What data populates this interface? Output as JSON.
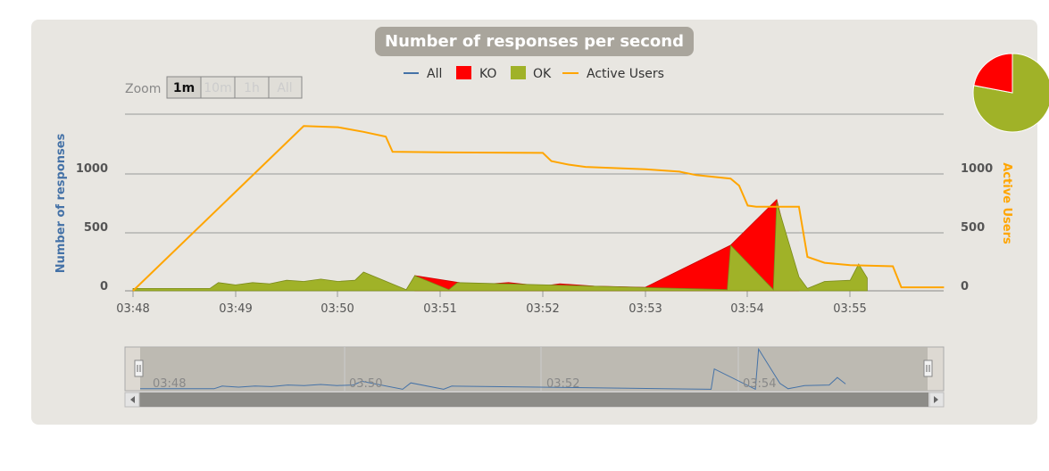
{
  "chart_data": {
    "type": "area",
    "title": "Number of responses per second",
    "legend": [
      "All",
      "KO",
      "OK",
      "Active Users"
    ],
    "legend_position": "top-center",
    "ylabel_left": "Number of responses",
    "ylabel_right": "Active Users",
    "yticks_left": [
      "0",
      "500",
      "1000"
    ],
    "yticks_right": [
      "0",
      "500",
      "1000"
    ],
    "xticks": [
      "03:48",
      "03:49",
      "03:50",
      "03:51",
      "03:52",
      "03:53",
      "03:54",
      "03:55"
    ],
    "navigator_ticks": [
      "03:48",
      "03:50",
      "03:52",
      "03:54"
    ],
    "ylim": [
      0,
      1500
    ],
    "grid": true,
    "colors": {
      "all": "#4572a7",
      "ko": "#ff0000",
      "ok": "#a0b228",
      "users": "#ffa500"
    },
    "active_users": {
      "x": [
        "03:48:00",
        "03:49:40",
        "03:50:00",
        "03:50:15",
        "03:50:28",
        "03:50:32",
        "03:51:00",
        "03:52:00",
        "03:52:05",
        "03:52:15",
        "03:52:25",
        "03:53:00",
        "03:53:20",
        "03:53:30",
        "03:53:50",
        "03:53:55",
        "03:54:00",
        "03:54:05",
        "03:54:30",
        "03:54:35",
        "03:54:45",
        "03:55:00",
        "03:55:25",
        "03:55:30",
        "03:55:55"
      ],
      "y": [
        0,
        1410,
        1400,
        1360,
        1320,
        1190,
        1185,
        1180,
        1110,
        1080,
        1060,
        1040,
        1020,
        990,
        960,
        900,
        730,
        720,
        720,
        290,
        240,
        220,
        210,
        30,
        30
      ]
    },
    "ok_series": {
      "x": [
        "03:48:00",
        "03:48:45",
        "03:48:50",
        "03:49:00",
        "03:49:10",
        "03:49:20",
        "03:49:30",
        "03:49:40",
        "03:49:50",
        "03:50:00",
        "03:50:10",
        "03:50:15",
        "03:50:40",
        "03:50:45",
        "03:51:05",
        "03:51:10",
        "03:53:48",
        "03:53:50",
        "03:54:15",
        "03:54:17",
        "03:54:30",
        "03:54:35",
        "03:54:45",
        "03:55:00",
        "03:55:05",
        "03:55:10"
      ],
      "y": [
        20,
        20,
        70,
        50,
        70,
        60,
        90,
        80,
        100,
        80,
        90,
        160,
        10,
        130,
        10,
        70,
        10,
        390,
        10,
        760,
        120,
        20,
        80,
        90,
        230,
        110
      ]
    },
    "ko_series": {
      "x": [
        "03:50:45",
        "03:51:20",
        "03:51:40",
        "03:52:00",
        "03:52:10",
        "03:52:30",
        "03:53:00",
        "03:53:50",
        "03:54:17",
        "03:54:30"
      ],
      "y": [
        130,
        50,
        70,
        40,
        60,
        40,
        30,
        390,
        780,
        20
      ]
    },
    "pie": {
      "ok": 78,
      "ko": 22
    }
  },
  "zoom": {
    "label": "Zoom",
    "buttons": [
      "1m",
      "10m",
      "1h",
      "All"
    ],
    "selected": "1m"
  }
}
